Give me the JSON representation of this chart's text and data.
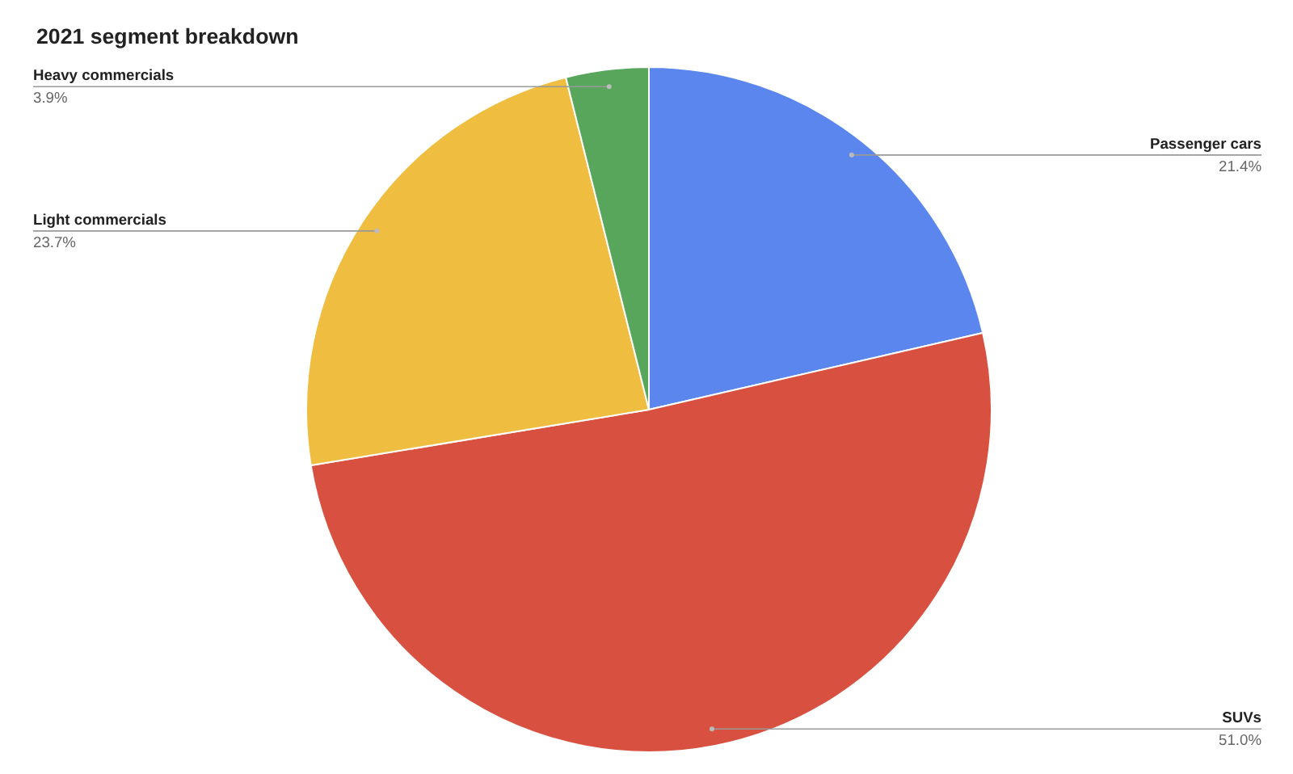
{
  "chart_data": {
    "type": "pie",
    "title": "2021 segment breakdown",
    "categories": [
      "Passenger cars",
      "SUVs",
      "Light commercials",
      "Heavy commercials"
    ],
    "values": [
      21.4,
      51.0,
      23.7,
      3.9
    ],
    "colors": [
      "#5a86ed",
      "#d85140",
      "#efbd40",
      "#58a65c"
    ],
    "value_labels": [
      "21.4%",
      "51.0%",
      "23.7%",
      "3.9%"
    ]
  }
}
